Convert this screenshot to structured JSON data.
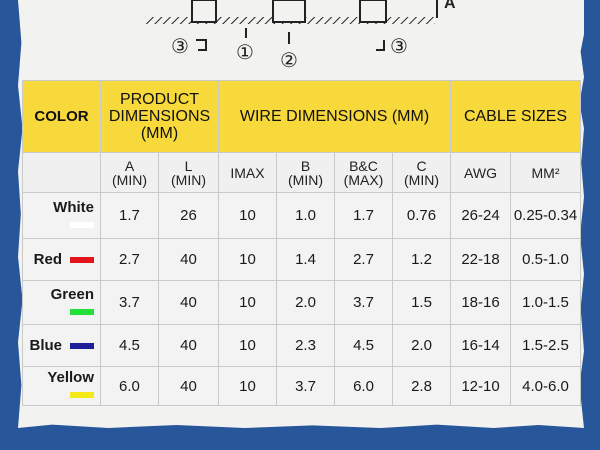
{
  "diagram": {
    "markers": [
      "③",
      "①",
      "②",
      "③"
    ],
    "dimension_label": "A"
  },
  "table": {
    "groups": [
      {
        "label": "COLOR"
      },
      {
        "label": "PRODUCT DIMENSIONS (MM)"
      },
      {
        "label": "WIRE DIMENSIONS (MM)"
      },
      {
        "label": "CABLE SIZES"
      }
    ],
    "subheaders": [
      [
        "A",
        "(MIN)"
      ],
      [
        "L",
        "(MIN)"
      ],
      [
        "IMAX"
      ],
      [
        "B",
        "(MIN)"
      ],
      [
        "B&C",
        "(MAX)"
      ],
      [
        "C",
        "(MIN)"
      ],
      [
        "AWG"
      ],
      [
        "MM²"
      ]
    ],
    "rows": [
      {
        "color": "White",
        "swatch": "#ffffff",
        "a": "1.7",
        "l": "26",
        "imax": "10",
        "b": "1.0",
        "bc": "1.7",
        "c": "0.76",
        "awg": "26-24",
        "mm2": "0.25-0.34"
      },
      {
        "color": "Red",
        "swatch": "#e3141c",
        "a": "2.7",
        "l": "40",
        "imax": "10",
        "b": "1.4",
        "bc": "2.7",
        "c": "1.2",
        "awg": "22-18",
        "mm2": "0.5-1.0"
      },
      {
        "color": "Green",
        "swatch": "#22e03a",
        "a": "3.7",
        "l": "40",
        "imax": "10",
        "b": "2.0",
        "bc": "3.7",
        "c": "1.5",
        "awg": "18-16",
        "mm2": "1.0-1.5"
      },
      {
        "color": "Blue",
        "swatch": "#1c1f96",
        "a": "4.5",
        "l": "40",
        "imax": "10",
        "b": "2.3",
        "bc": "4.5",
        "c": "2.0",
        "awg": "16-14",
        "mm2": "1.5-2.5"
      },
      {
        "color": "Yellow",
        "swatch": "#f4ea18",
        "a": "6.0",
        "l": "40",
        "imax": "10",
        "b": "3.7",
        "bc": "6.0",
        "c": "2.8",
        "awg": "12-10",
        "mm2": "4.0-6.0"
      }
    ]
  },
  "colors": {
    "header_bg": "#f7d93c",
    "page_bg": "#27579a",
    "paper": "#f2f2f0"
  }
}
